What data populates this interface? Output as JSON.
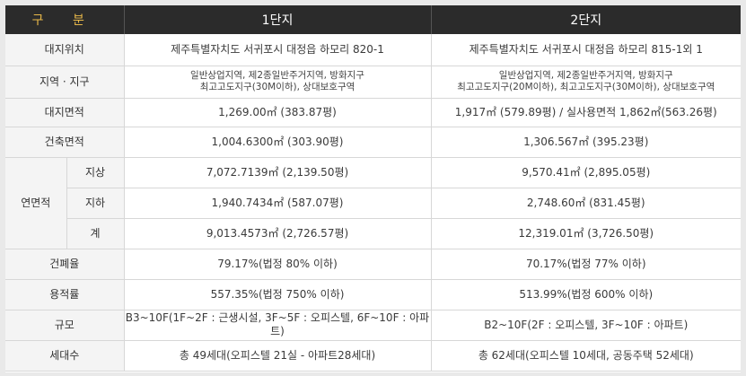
{
  "header": {
    "category": "구 분",
    "complex1": "1단지",
    "complex2": "2단지"
  },
  "rows": {
    "site_location": {
      "label": "대지위치",
      "c1": "제주특별자치도 서귀포시 대정읍 하모리 820-1",
      "c2": "제주특별자치도 서귀포시 대정읍 하모리 815-1외 1"
    },
    "zoning": {
      "label": "지역 · 지구",
      "c1_line1": "일반상업지역, 제2종일반주거지역, 방화지구",
      "c1_line2": "최고고도지구(30M이하), 상대보호구역",
      "c2_line1": "일반상업지역, 제2종일반주거지역, 방화지구",
      "c2_line2": "최고고도지구(20M이하), 최고고도지구(30M이하), 상대보호구역"
    },
    "site_area": {
      "label": "대지면적",
      "c1": "1,269.00㎡ (383.87평)",
      "c2": "1,917㎡ (579.89평) / 실사용면적 1,862㎡(563.26평)"
    },
    "building_area": {
      "label": "건축면적",
      "c1": "1,004.6300㎡ (303.90평)",
      "c2": "1,306.567㎡ (395.23평)"
    },
    "gross_floor_area": {
      "label": "연면적",
      "above": {
        "label": "지상",
        "c1": "7,072.7139㎡ (2,139.50평)",
        "c2": "9,570.41㎡ (2,895.05평)"
      },
      "below": {
        "label": "지하",
        "c1": "1,940.7434㎡ (587.07평)",
        "c2": "2,748.60㎡ (831.45평)"
      },
      "total": {
        "label": "계",
        "c1": "9,013.4573㎡ (2,726.57평)",
        "c2": "12,319.01㎡ (3,726.50평)"
      }
    },
    "coverage_ratio": {
      "label": "건폐율",
      "c1": "79.17%(법정 80% 이하)",
      "c2": "70.17%(법정 77% 이하)"
    },
    "floor_area_ratio": {
      "label": "용적률",
      "c1": "557.35%(법정 750% 이하)",
      "c2": "513.99%(법정 600% 이하)"
    },
    "scale": {
      "label": "규모",
      "c1": "B3~10F(1F~2F : 근생시설, 3F~5F : 오피스텔, 6F~10F : 아파트)",
      "c2": "B2~10F(2F : 오피스텔, 3F~10F : 아파트)"
    },
    "households": {
      "label": "세대수",
      "c1": "총 49세대(오피스텔 21실 - 아파트28세대)",
      "c2": "총 62세대(오피스텔 10세대, 공동주택 52세대)"
    }
  }
}
